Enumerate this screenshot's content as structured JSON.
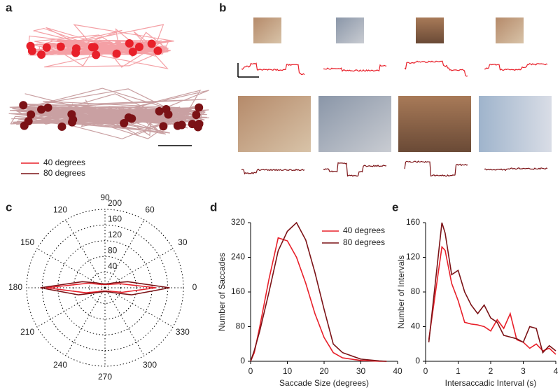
{
  "panels": {
    "a": "a",
    "b": "b",
    "c": "c",
    "d": "d",
    "e": "e"
  },
  "scanpath_legend": [
    {
      "name": "40 degrees",
      "color": "#e8202a"
    },
    {
      "name": "80 degrees",
      "color": "#7b1216"
    }
  ],
  "chart_data": [
    {
      "type": "polar",
      "theta": [
        0,
        15,
        30,
        45,
        60,
        75,
        90,
        105,
        120,
        135,
        150,
        165,
        180,
        195,
        210,
        225,
        240,
        255,
        270,
        285,
        300,
        315,
        330,
        345
      ],
      "rlim": [
        0,
        200
      ],
      "rticks": [
        40,
        80,
        120,
        160,
        200
      ],
      "thetaticks": [
        0,
        30,
        60,
        90,
        120,
        150,
        180,
        210,
        240,
        270,
        300,
        330
      ],
      "series": [
        {
          "color": "#e8202a",
          "values": [
            130,
            40,
            18,
            12,
            10,
            9,
            8,
            9,
            10,
            12,
            18,
            45,
            150,
            50,
            20,
            12,
            10,
            9,
            8,
            9,
            10,
            12,
            18,
            45
          ]
        },
        {
          "color": "#7b1216",
          "values": [
            165,
            60,
            25,
            15,
            12,
            10,
            10,
            10,
            12,
            15,
            25,
            60,
            165,
            70,
            25,
            15,
            12,
            10,
            10,
            10,
            12,
            15,
            25,
            70
          ]
        }
      ]
    },
    {
      "type": "line",
      "xlabel": "Saccade Size (degrees)",
      "ylabel": "Number of Saccades",
      "x": [
        0,
        1,
        2.5,
        5,
        7.5,
        10,
        12.5,
        15,
        17.5,
        20,
        22.5,
        25,
        30,
        35,
        37
      ],
      "xlim": [
        0,
        40
      ],
      "xticks": [
        0,
        10,
        20,
        30,
        40
      ],
      "ylim": [
        0,
        320
      ],
      "yticks": [
        0,
        80,
        160,
        240,
        320
      ],
      "legend": "upper right",
      "series": [
        {
          "name": "40 degrees",
          "color": "#e8202a",
          "values": [
            0,
            20,
            80,
            190,
            285,
            278,
            240,
            180,
            110,
            55,
            20,
            8,
            2,
            0,
            0
          ]
        },
        {
          "name": "80 degrees",
          "color": "#7b1216",
          "values": [
            0,
            25,
            70,
            160,
            255,
            300,
            320,
            280,
            205,
            120,
            40,
            20,
            5,
            1,
            0
          ]
        }
      ]
    },
    {
      "type": "line",
      "xlabel": "Intersaccadic Interval (s)",
      "ylabel": "Number of Intervals",
      "x": [
        0.1,
        0.5,
        0.6,
        0.8,
        1.0,
        1.2,
        1.4,
        1.6,
        1.8,
        2.0,
        2.2,
        2.4,
        2.6,
        2.8,
        3.0,
        3.2,
        3.4,
        3.6,
        3.8,
        4.0
      ],
      "xlim": [
        0,
        4
      ],
      "xticks": [
        0,
        1,
        2,
        3,
        4
      ],
      "ylim": [
        0,
        160
      ],
      "yticks": [
        0,
        40,
        80,
        120,
        160
      ],
      "series": [
        {
          "color": "#e8202a",
          "values": [
            25,
            132,
            128,
            90,
            70,
            45,
            43,
            42,
            40,
            35,
            48,
            38,
            55,
            25,
            22,
            15,
            20,
            12,
            15,
            8
          ]
        },
        {
          "color": "#7b1216",
          "values": [
            22,
            160,
            148,
            100,
            105,
            80,
            65,
            55,
            65,
            50,
            45,
            30,
            28,
            26,
            22,
            40,
            38,
            10,
            18,
            12
          ]
        }
      ]
    }
  ]
}
